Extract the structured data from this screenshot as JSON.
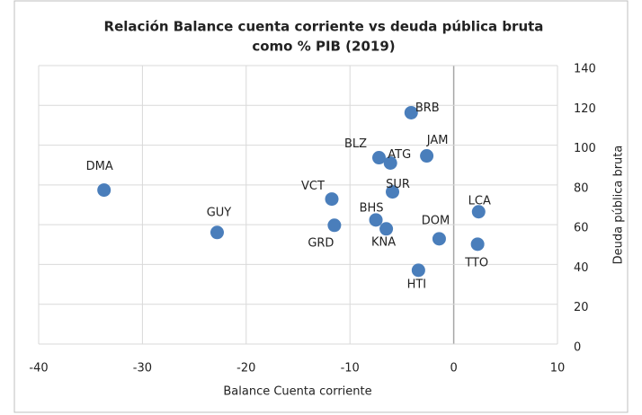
{
  "chart_data": {
    "type": "scatter",
    "title": [
      "Relación Balance cuenta corriente vs deuda pública bruta",
      "como % PIB (2019)"
    ],
    "xlabel": "Balance Cuenta corriente",
    "ylabel": "Deuda pública bruta",
    "labels": [
      "DMA",
      "GUY",
      "VCT",
      "GRD",
      "BLZ",
      "ATG",
      "BRB",
      "JAM",
      "SUR",
      "BHS",
      "KNA",
      "DOM",
      "LCA",
      "TTO",
      "HTI"
    ],
    "x": [
      -33.7,
      -22.8,
      -11.75,
      -11.5,
      -7.2,
      -6.1,
      -4.1,
      -2.6,
      -5.9,
      -7.5,
      -6.5,
      -1.4,
      2.4,
      2.3,
      -3.4
    ],
    "y": [
      77.4,
      56.1,
      72.9,
      59.7,
      93.7,
      91.0,
      116.3,
      94.6,
      76.5,
      62.4,
      57.9,
      52.9,
      66.5,
      50.2,
      37.1
    ],
    "color": "#4a7ebb",
    "xlim": [
      -40,
      10
    ],
    "xticks": [
      -40,
      -30,
      -20,
      -10,
      0,
      10
    ],
    "ylim": [
      0,
      140
    ],
    "yticks": [
      0,
      20,
      40,
      60,
      80,
      100,
      120,
      140
    ],
    "grid": true
  }
}
